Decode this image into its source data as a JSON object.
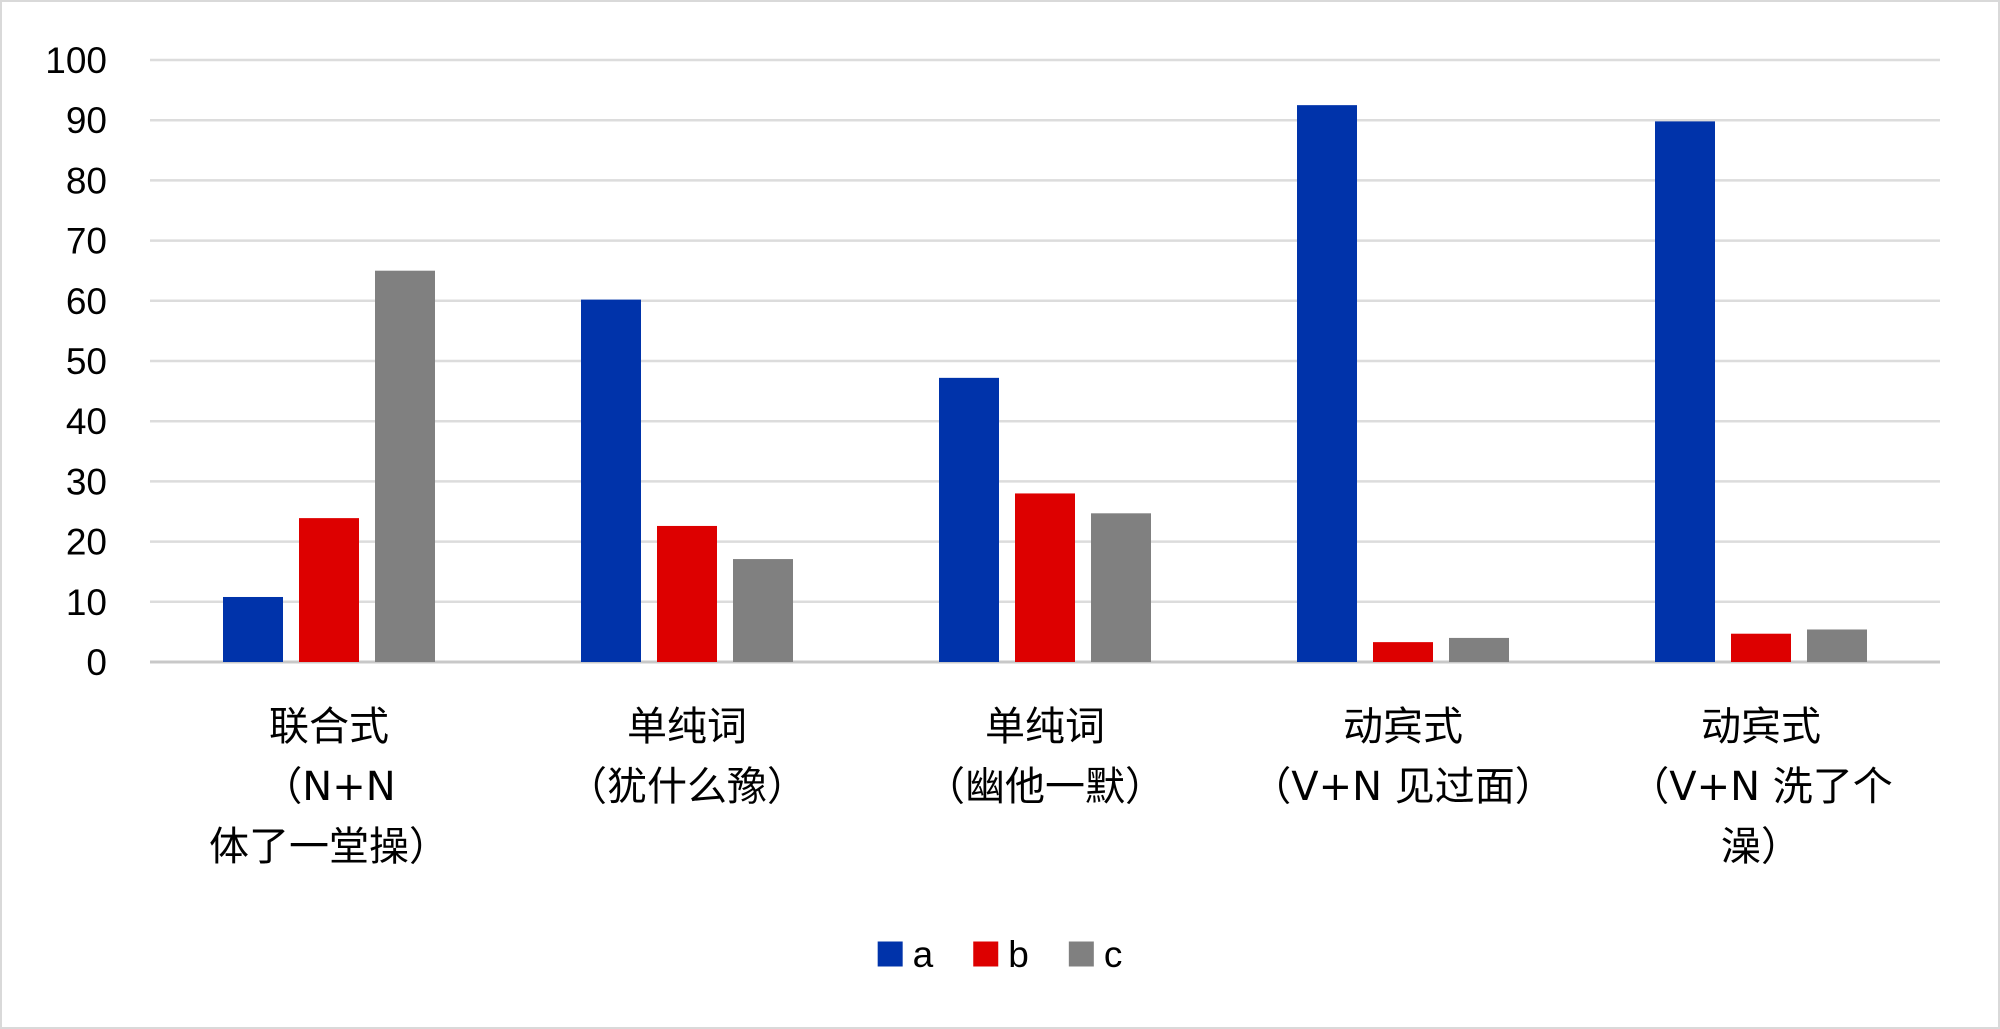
{
  "chart_data": {
    "type": "bar",
    "title": "",
    "xlabel": "",
    "ylabel": "",
    "ylim": [
      0,
      100
    ],
    "ytick_step": 10,
    "grid": true,
    "legend_position": "bottom",
    "categories": [
      [
        "联合式",
        "（N+N",
        "体了一堂操）"
      ],
      [
        "单纯词",
        "（犹什么豫）"
      ],
      [
        "单纯词",
        "（幽他一默）"
      ],
      [
        "动宾式",
        "（V+N 见过面）"
      ],
      [
        "动宾式",
        "（V+N 洗了个",
        "澡）"
      ]
    ],
    "series": [
      {
        "name": "a",
        "color": "#0033aa",
        "values": [
          10.8,
          60.2,
          47.2,
          92.5,
          89.8
        ]
      },
      {
        "name": "b",
        "color": "#dd0000",
        "values": [
          23.9,
          22.6,
          28.0,
          3.3,
          4.7
        ]
      },
      {
        "name": "c",
        "color": "#808080",
        "values": [
          65.0,
          17.1,
          24.7,
          4.0,
          5.4
        ]
      }
    ]
  }
}
